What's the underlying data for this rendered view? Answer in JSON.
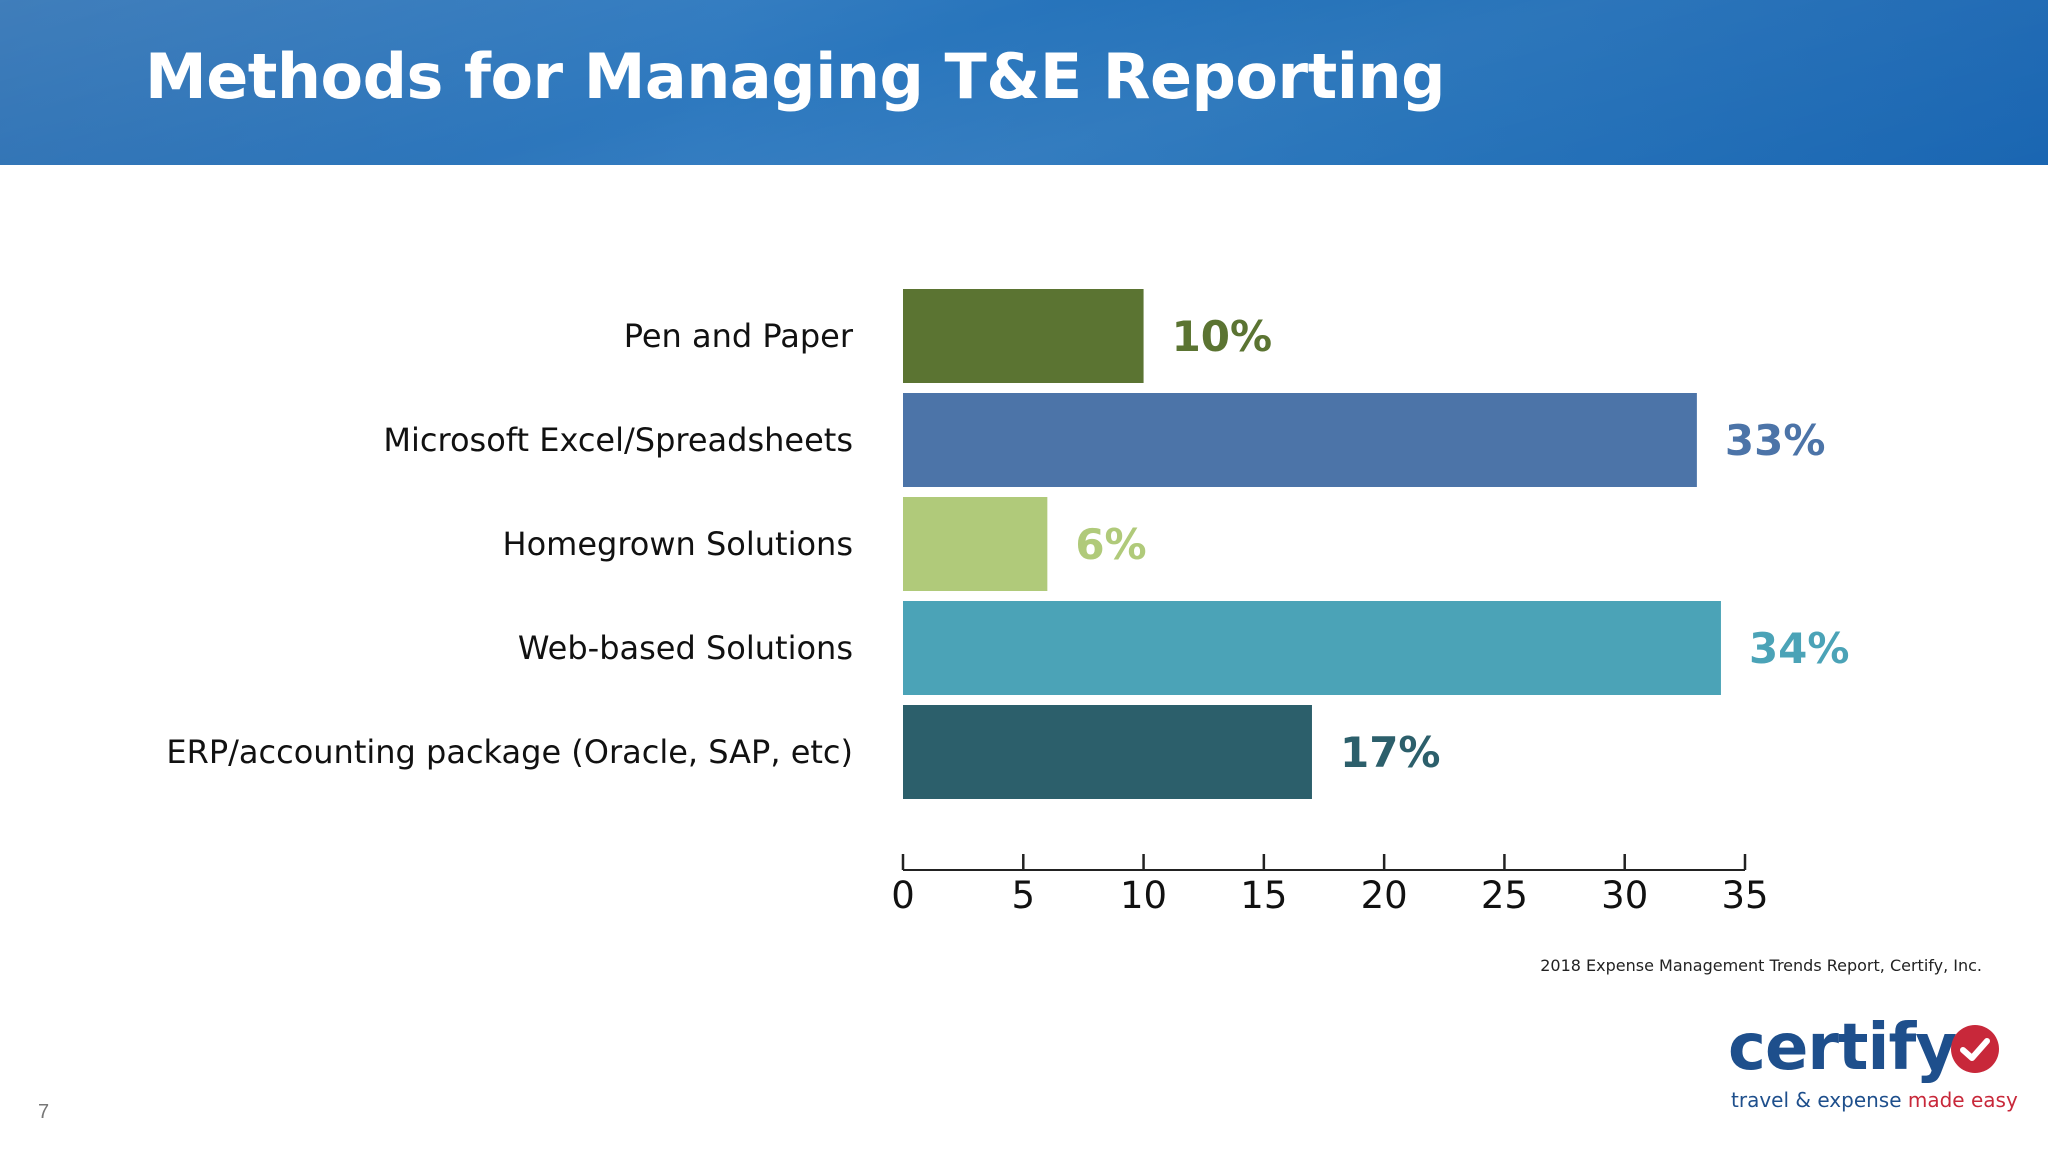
{
  "slide": {
    "title": "Methods for Managing T&E Reporting",
    "source": "2018 Expense Management Trends Report, Certify, Inc.",
    "page_number": "7"
  },
  "logo": {
    "wordmark": "certify",
    "icon": "checkmark-circle-icon",
    "tagline_part1": "travel & expense ",
    "tagline_part2": "made easy",
    "colors": {
      "wordmark": "#1e4f8c",
      "check": "#c8283a"
    }
  },
  "chart_data": {
    "type": "bar",
    "orientation": "horizontal",
    "categories": [
      "Pen and Paper",
      "Microsoft Excel/Spreadsheets",
      "Homegrown Solutions",
      "Web-based Solutions",
      "ERP/accounting package (Oracle, SAP, etc)"
    ],
    "values": [
      10,
      33,
      6,
      34,
      17
    ],
    "data_labels": [
      "10%",
      "33%",
      "6%",
      "34%",
      "17%"
    ],
    "colors": [
      "#5b7432",
      "#4c74a8",
      "#b0ca7a",
      "#4ba3b7",
      "#2c5f6b"
    ],
    "xlim": [
      0,
      35
    ],
    "xticks": [
      0,
      5,
      10,
      15,
      20,
      25,
      30,
      35
    ],
    "title": "",
    "xlabel": "",
    "ylabel": "",
    "grid": false,
    "legend": "none"
  }
}
